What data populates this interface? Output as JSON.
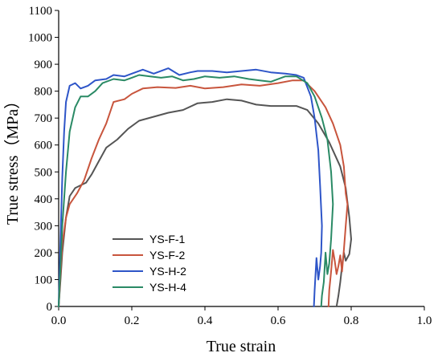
{
  "chart_data": {
    "type": "line",
    "xlabel": "True strain",
    "ylabel": "True stress（MPa）",
    "xlim": [
      0.0,
      1.0
    ],
    "ylim": [
      0,
      1100
    ],
    "x_ticks": [
      "0.0",
      "0.2",
      "0.4",
      "0.6",
      "0.8",
      "1.0"
    ],
    "y_ticks": [
      "0",
      "100",
      "200",
      "300",
      "400",
      "500",
      "600",
      "700",
      "800",
      "900",
      "1000",
      "1100"
    ],
    "legend_position": "bottom-left",
    "grid": false,
    "series": [
      {
        "name": "YS-F-1",
        "color": "#555555",
        "points": [
          [
            0.0,
            0
          ],
          [
            0.005,
            100
          ],
          [
            0.01,
            200
          ],
          [
            0.02,
            330
          ],
          [
            0.03,
            410
          ],
          [
            0.045,
            440
          ],
          [
            0.06,
            450
          ],
          [
            0.075,
            460
          ],
          [
            0.09,
            490
          ],
          [
            0.11,
            540
          ],
          [
            0.13,
            590
          ],
          [
            0.16,
            620
          ],
          [
            0.19,
            660
          ],
          [
            0.22,
            690
          ],
          [
            0.26,
            705
          ],
          [
            0.3,
            720
          ],
          [
            0.34,
            730
          ],
          [
            0.38,
            755
          ],
          [
            0.42,
            760
          ],
          [
            0.46,
            770
          ],
          [
            0.5,
            765
          ],
          [
            0.54,
            750
          ],
          [
            0.58,
            745
          ],
          [
            0.62,
            745
          ],
          [
            0.65,
            745
          ],
          [
            0.68,
            730
          ],
          [
            0.71,
            680
          ],
          [
            0.74,
            610
          ],
          [
            0.77,
            520
          ],
          [
            0.785,
            440
          ],
          [
            0.795,
            330
          ],
          [
            0.8,
            250
          ],
          [
            0.795,
            195
          ],
          [
            0.785,
            170
          ],
          [
            0.78,
            200
          ],
          [
            0.775,
            150
          ],
          [
            0.77,
            90
          ],
          [
            0.765,
            40
          ],
          [
            0.76,
            0
          ]
        ]
      },
      {
        "name": "YS-F-2",
        "color": "#C8553D",
        "points": [
          [
            0.0,
            0
          ],
          [
            0.005,
            120
          ],
          [
            0.01,
            230
          ],
          [
            0.02,
            330
          ],
          [
            0.03,
            380
          ],
          [
            0.05,
            420
          ],
          [
            0.07,
            470
          ],
          [
            0.09,
            550
          ],
          [
            0.11,
            620
          ],
          [
            0.13,
            680
          ],
          [
            0.15,
            760
          ],
          [
            0.18,
            770
          ],
          [
            0.2,
            790
          ],
          [
            0.23,
            810
          ],
          [
            0.27,
            815
          ],
          [
            0.32,
            812
          ],
          [
            0.36,
            820
          ],
          [
            0.4,
            810
          ],
          [
            0.45,
            815
          ],
          [
            0.5,
            825
          ],
          [
            0.55,
            820
          ],
          [
            0.6,
            830
          ],
          [
            0.64,
            840
          ],
          [
            0.67,
            840
          ],
          [
            0.7,
            800
          ],
          [
            0.73,
            740
          ],
          [
            0.75,
            680
          ],
          [
            0.77,
            600
          ],
          [
            0.78,
            520
          ],
          [
            0.785,
            420
          ],
          [
            0.79,
            380
          ],
          [
            0.785,
            300
          ],
          [
            0.78,
            210
          ],
          [
            0.775,
            130
          ],
          [
            0.77,
            190
          ],
          [
            0.765,
            150
          ],
          [
            0.76,
            120
          ],
          [
            0.755,
            170
          ],
          [
            0.75,
            210
          ],
          [
            0.745,
            130
          ],
          [
            0.74,
            60
          ],
          [
            0.738,
            0
          ]
        ]
      },
      {
        "name": "YS-H-2",
        "color": "#2E55C8",
        "points": [
          [
            0.0,
            0
          ],
          [
            0.005,
            250
          ],
          [
            0.01,
            480
          ],
          [
            0.015,
            650
          ],
          [
            0.02,
            760
          ],
          [
            0.03,
            820
          ],
          [
            0.045,
            830
          ],
          [
            0.06,
            810
          ],
          [
            0.08,
            820
          ],
          [
            0.1,
            840
          ],
          [
            0.13,
            845
          ],
          [
            0.15,
            860
          ],
          [
            0.18,
            855
          ],
          [
            0.2,
            865
          ],
          [
            0.23,
            880
          ],
          [
            0.26,
            865
          ],
          [
            0.3,
            885
          ],
          [
            0.33,
            860
          ],
          [
            0.36,
            870
          ],
          [
            0.38,
            875
          ],
          [
            0.42,
            875
          ],
          [
            0.46,
            870
          ],
          [
            0.5,
            875
          ],
          [
            0.54,
            880
          ],
          [
            0.58,
            870
          ],
          [
            0.62,
            865
          ],
          [
            0.65,
            860
          ],
          [
            0.67,
            850
          ],
          [
            0.69,
            780
          ],
          [
            0.7,
            700
          ],
          [
            0.71,
            580
          ],
          [
            0.715,
            450
          ],
          [
            0.72,
            300
          ],
          [
            0.718,
            200
          ],
          [
            0.715,
            150
          ],
          [
            0.71,
            100
          ],
          [
            0.705,
            180
          ],
          [
            0.7,
            60
          ],
          [
            0.698,
            0
          ]
        ]
      },
      {
        "name": "YS-H-4",
        "color": "#2A8A65",
        "points": [
          [
            0.0,
            0
          ],
          [
            0.005,
            150
          ],
          [
            0.01,
            300
          ],
          [
            0.02,
            500
          ],
          [
            0.03,
            650
          ],
          [
            0.045,
            740
          ],
          [
            0.06,
            780
          ],
          [
            0.08,
            780
          ],
          [
            0.1,
            800
          ],
          [
            0.12,
            830
          ],
          [
            0.15,
            845
          ],
          [
            0.18,
            840
          ],
          [
            0.2,
            850
          ],
          [
            0.22,
            860
          ],
          [
            0.25,
            855
          ],
          [
            0.28,
            850
          ],
          [
            0.31,
            855
          ],
          [
            0.34,
            840
          ],
          [
            0.37,
            845
          ],
          [
            0.4,
            855
          ],
          [
            0.44,
            850
          ],
          [
            0.48,
            855
          ],
          [
            0.52,
            845
          ],
          [
            0.55,
            840
          ],
          [
            0.58,
            835
          ],
          [
            0.62,
            855
          ],
          [
            0.65,
            855
          ],
          [
            0.68,
            830
          ],
          [
            0.7,
            780
          ],
          [
            0.72,
            700
          ],
          [
            0.735,
            620
          ],
          [
            0.745,
            500
          ],
          [
            0.75,
            380
          ],
          [
            0.745,
            250
          ],
          [
            0.74,
            160
          ],
          [
            0.735,
            120
          ],
          [
            0.73,
            200
          ],
          [
            0.725,
            90
          ],
          [
            0.72,
            40
          ],
          [
            0.718,
            0
          ]
        ]
      }
    ]
  }
}
